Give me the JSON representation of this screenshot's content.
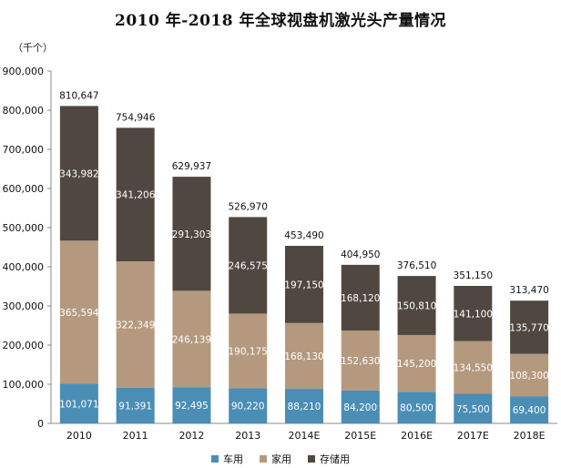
{
  "title": "2010 年-2018 年全球视盘机激光头产量情况",
  "unit_label": "（千个）",
  "colors": {
    "车用": "#4a8db5",
    "家用": "#b5997e",
    "存储用": "#504840",
    "axis": "#888888"
  },
  "chart_data": {
    "type": "bar",
    "stacked": true,
    "categories": [
      "2010",
      "2011",
      "2012",
      "2013",
      "2014E",
      "2015E",
      "2016E",
      "2017E",
      "2018E"
    ],
    "series": [
      {
        "name": "车用",
        "values": [
          101071,
          91391,
          92495,
          90220,
          88210,
          84200,
          80500,
          75500,
          69400
        ]
      },
      {
        "name": "家用",
        "values": [
          365594,
          322349,
          246139,
          190175,
          168130,
          152630,
          145200,
          134550,
          108300
        ]
      },
      {
        "name": "存储用",
        "values": [
          343982,
          341206,
          291303,
          246575,
          197150,
          168120,
          150810,
          141100,
          135770
        ]
      }
    ],
    "totals": [
      810647,
      754946,
      629937,
      526970,
      453490,
      404950,
      376510,
      351150,
      313470
    ],
    "ylim": [
      0,
      900000
    ],
    "yticks": [
      0,
      100000,
      200000,
      300000,
      400000,
      500000,
      600000,
      700000,
      800000,
      900000
    ],
    "ytick_labels": [
      "0",
      "100,000",
      "200,000",
      "300,000",
      "400,000",
      "500,000",
      "600,000",
      "700,000",
      "800,000",
      "900,000"
    ],
    "legend": "bottom",
    "grid": false
  }
}
